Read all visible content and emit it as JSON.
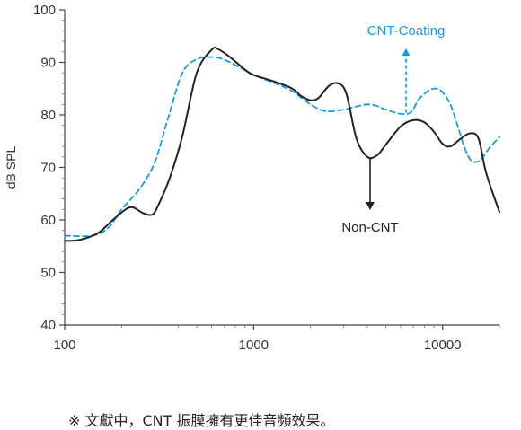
{
  "chart_data": {
    "type": "line",
    "title": "",
    "xlabel": "",
    "ylabel": "dB SPL",
    "xscale": "log",
    "xlim": [
      100,
      20000
    ],
    "ylim": [
      40,
      100
    ],
    "x_ticks": [
      100,
      1000,
      10000
    ],
    "x_tick_labels": [
      "100",
      "1000",
      "10000"
    ],
    "y_ticks": [
      40,
      50,
      60,
      70,
      80,
      90,
      100
    ],
    "y_tick_labels": [
      "40",
      "50",
      "60",
      "70",
      "80",
      "90",
      "100"
    ],
    "grid": false,
    "series": [
      {
        "name": "Non-CNT",
        "color": "#222222",
        "style": "solid",
        "points": [
          [
            100,
            56
          ],
          [
            120,
            56.2
          ],
          [
            150,
            57.5
          ],
          [
            180,
            60
          ],
          [
            210,
            62
          ],
          [
            230,
            62.4
          ],
          [
            260,
            61.3
          ],
          [
            290,
            61
          ],
          [
            310,
            62.5
          ],
          [
            360,
            68
          ],
          [
            420,
            76
          ],
          [
            500,
            88
          ],
          [
            600,
            92.4
          ],
          [
            650,
            92.5
          ],
          [
            750,
            91
          ],
          [
            900,
            88.6
          ],
          [
            1000,
            87.6
          ],
          [
            1300,
            86.3
          ],
          [
            1600,
            85
          ],
          [
            1800,
            83.5
          ],
          [
            2000,
            82.8
          ],
          [
            2200,
            83.2
          ],
          [
            2500,
            85.5
          ],
          [
            2800,
            86
          ],
          [
            3100,
            84
          ],
          [
            3500,
            75.5
          ],
          [
            4000,
            72
          ],
          [
            4500,
            72.3
          ],
          [
            5000,
            74.3
          ],
          [
            6000,
            77.8
          ],
          [
            7000,
            79
          ],
          [
            8000,
            78.6
          ],
          [
            9000,
            76.8
          ],
          [
            10000,
            74.5
          ],
          [
            11000,
            74
          ],
          [
            12500,
            75.5
          ],
          [
            14000,
            76.5
          ],
          [
            15500,
            75.5
          ],
          [
            17000,
            69
          ],
          [
            20000,
            61.5
          ]
        ]
      },
      {
        "name": "CNT-Coating",
        "color": "#1a9bd7",
        "style": "dashed",
        "points": [
          [
            100,
            57
          ],
          [
            140,
            57
          ],
          [
            170,
            58.5
          ],
          [
            200,
            62
          ],
          [
            250,
            66
          ],
          [
            300,
            71
          ],
          [
            350,
            79
          ],
          [
            420,
            88
          ],
          [
            500,
            90.6
          ],
          [
            600,
            91
          ],
          [
            700,
            90.5
          ],
          [
            900,
            88.5
          ],
          [
            1000,
            87.6
          ],
          [
            1300,
            86
          ],
          [
            1600,
            84.5
          ],
          [
            2000,
            82
          ],
          [
            2400,
            80.7
          ],
          [
            3000,
            81
          ],
          [
            3500,
            81.6
          ],
          [
            4000,
            82
          ],
          [
            4500,
            81.7
          ],
          [
            5000,
            81
          ],
          [
            6000,
            80.2
          ],
          [
            6800,
            80.5
          ],
          [
            7500,
            83
          ],
          [
            8500,
            84.7
          ],
          [
            9300,
            85
          ],
          [
            10000,
            84.3
          ],
          [
            11000,
            82
          ],
          [
            12000,
            78
          ],
          [
            13000,
            74
          ],
          [
            14000,
            71.5
          ],
          [
            15000,
            71
          ],
          [
            16000,
            71.5
          ],
          [
            17500,
            73.5
          ],
          [
            20000,
            75.8
          ]
        ]
      }
    ],
    "annotations": [
      {
        "text": "CNT-Coating",
        "series": "CNT-Coating",
        "arrow": "up"
      },
      {
        "text": "Non-CNT",
        "series": "Non-CNT",
        "arrow": "down"
      }
    ]
  },
  "footnote": "※ 文獻中，CNT 振膜擁有更佳音頻效果。"
}
